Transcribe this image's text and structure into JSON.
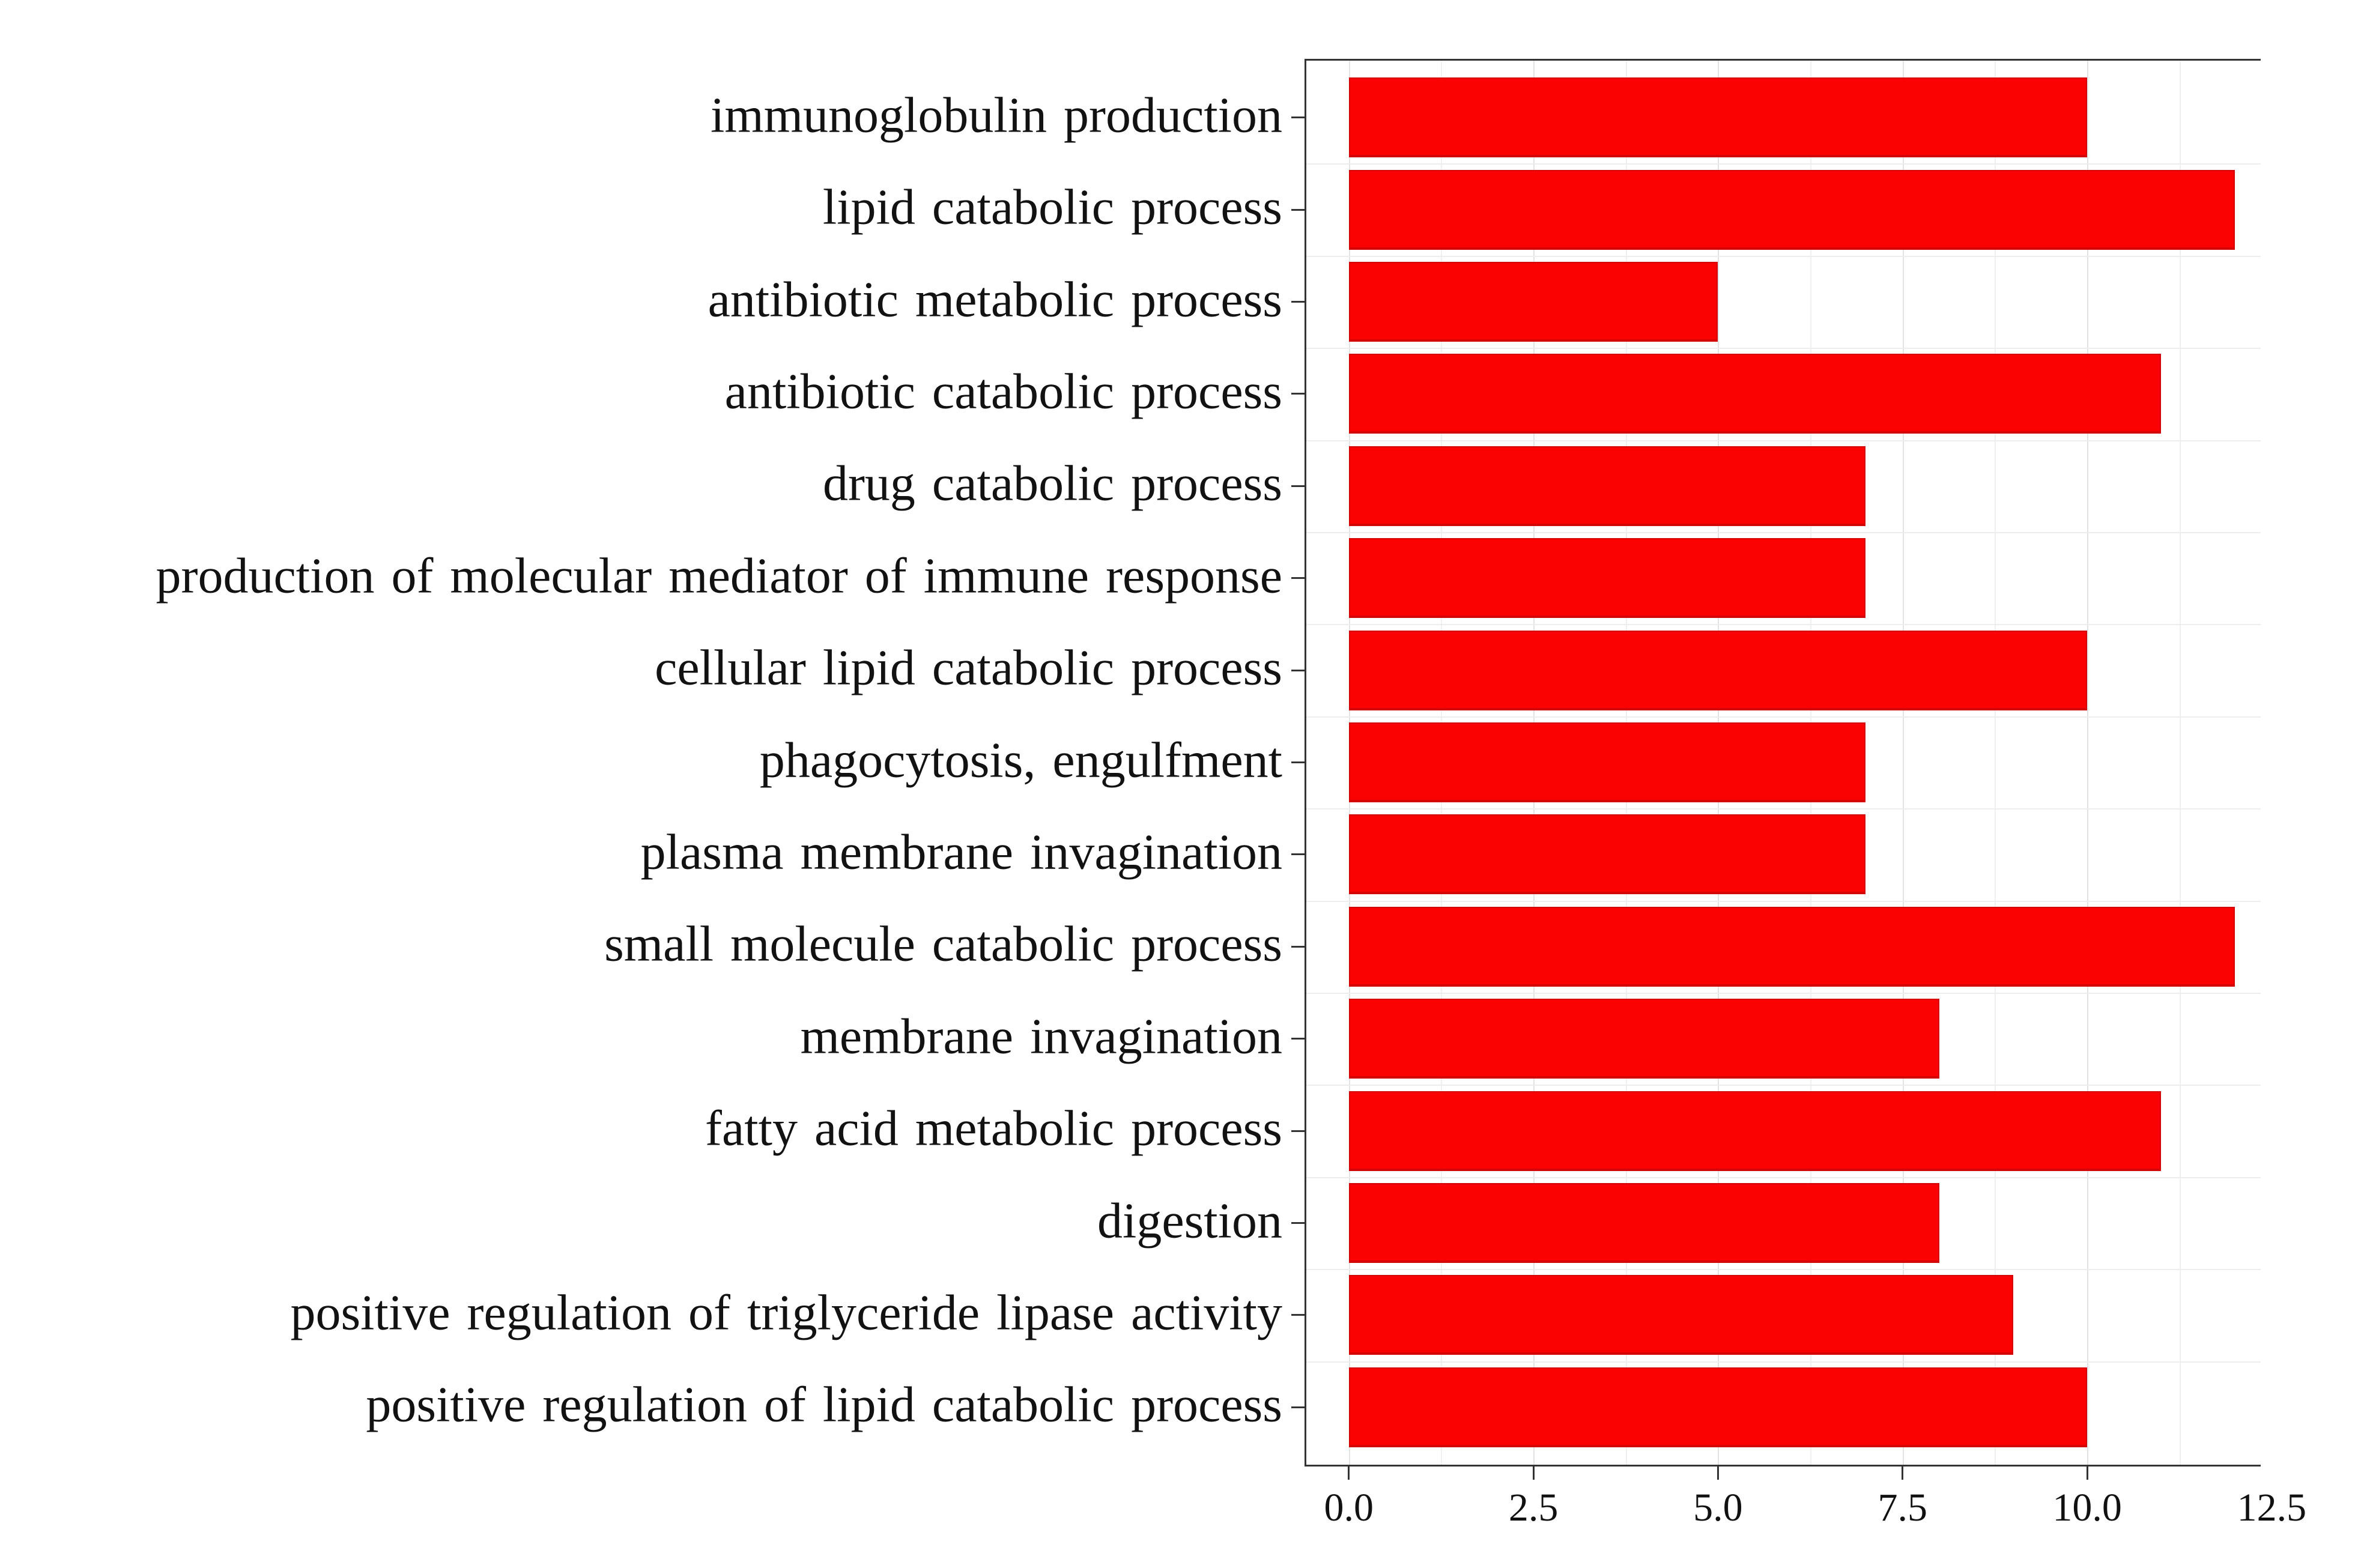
{
  "figure": {
    "background_color": "#ffffff",
    "text_color": "#101010"
  },
  "chart_data": {
    "type": "bar",
    "orientation": "horizontal",
    "title": "",
    "categories": [
      "immunoglobulin production",
      "lipid catabolic process",
      "antibiotic metabolic process",
      "antibiotic catabolic process",
      "drug catabolic process",
      "production of molecular mediator of immune response",
      "cellular lipid catabolic process",
      "phagocytosis, engulfment",
      "plasma membrane invagination",
      "small molecule catabolic process",
      "membrane invagination",
      "fatty acid metabolic process",
      "digestion",
      "positive regulation of triglyceride lipase activity",
      "positive regulation of lipid catabolic process"
    ],
    "values": [
      10,
      12,
      5,
      11,
      7,
      7,
      10,
      7,
      7,
      12,
      8,
      11,
      8,
      9,
      10
    ],
    "x_ticks": [
      0.0,
      2.5,
      5.0,
      7.5,
      10.0,
      12.5
    ],
    "x_tick_labels": [
      "0.0",
      "2.5",
      "5.0",
      "7.5",
      "10.0",
      "12.5"
    ],
    "x_minor_ticks": [
      1.25,
      3.75,
      6.25,
      8.75,
      11.25
    ],
    "xlim": [
      -0.6,
      12.35
    ],
    "grid": true,
    "legend": "none",
    "bar_color": "#fa0202",
    "bar_edge_color": "#d30505",
    "grid_major_color": "#e3e3e3",
    "grid_minor_color": "#f0f0f0",
    "spine_color": "#333333"
  }
}
